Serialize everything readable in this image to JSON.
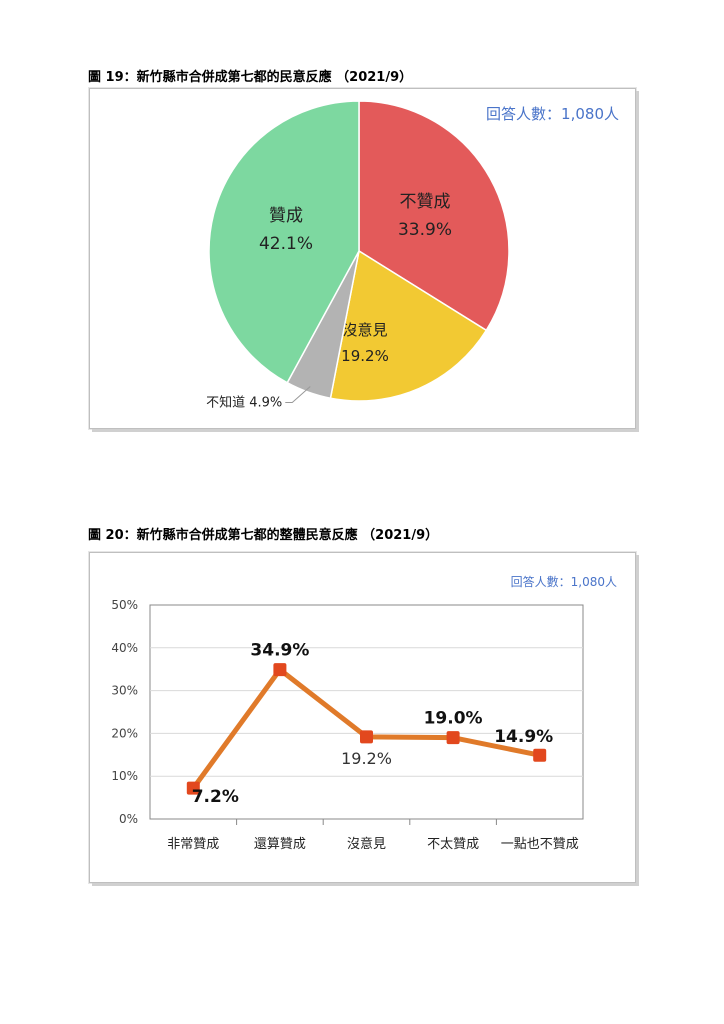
{
  "figures": {
    "fig19_title": "圖 19：新竹縣市合併成第七都的民意反應 （2021/9）",
    "fig20_title": "圖 20：新竹縣市合併成第七都的整體民意反應 （2021/9）",
    "respondents_label": "回答人數：1,080人"
  },
  "chart_data": [
    {
      "type": "pie",
      "slices": [
        {
          "label": "不贊成",
          "value": 33.9,
          "value_label": "33.9%",
          "color": "#e35a5a"
        },
        {
          "label": "沒意見",
          "value": 19.2,
          "value_label": "19.2%",
          "color": "#f2c933"
        },
        {
          "label": "不知道",
          "value": 4.9,
          "value_label": "4.9%",
          "color": "#b3b3b3",
          "callout": "不知道 4.9%"
        },
        {
          "label": "贊成",
          "value": 42.1,
          "value_label": "42.1%",
          "color": "#7dd8a0"
        }
      ],
      "annotation": "回答人數：1,080人"
    },
    {
      "type": "line",
      "categories": [
        "非常贊成",
        "還算贊成",
        "沒意見",
        "不太贊成",
        "一點也不贊成"
      ],
      "values": [
        7.2,
        34.9,
        19.2,
        19.0,
        14.9
      ],
      "value_labels": [
        "7.2%",
        "34.9%",
        "19.2%",
        "19.0%",
        "14.9%"
      ],
      "ylim": [
        0,
        50
      ],
      "yticks": [
        "0%",
        "10%",
        "20%",
        "30%",
        "40%",
        "50%"
      ],
      "grid": true,
      "line_color": "#e07a2a",
      "marker_color": "#e2481e",
      "annotation": "回答人數：1,080人"
    }
  ]
}
